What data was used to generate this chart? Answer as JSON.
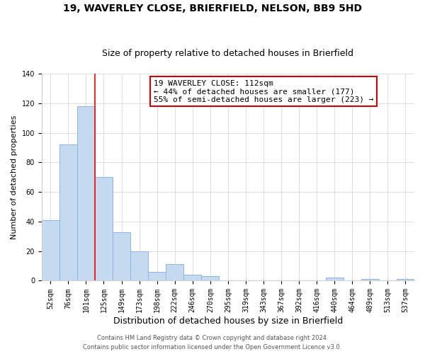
{
  "title": "19, WAVERLEY CLOSE, BRIERFIELD, NELSON, BB9 5HD",
  "subtitle": "Size of property relative to detached houses in Brierfield",
  "xlabel": "Distribution of detached houses by size in Brierfield",
  "ylabel": "Number of detached properties",
  "bar_labels": [
    "52sqm",
    "76sqm",
    "101sqm",
    "125sqm",
    "149sqm",
    "173sqm",
    "198sqm",
    "222sqm",
    "246sqm",
    "270sqm",
    "295sqm",
    "319sqm",
    "343sqm",
    "367sqm",
    "392sqm",
    "416sqm",
    "440sqm",
    "464sqm",
    "489sqm",
    "513sqm",
    "537sqm"
  ],
  "bar_values": [
    41,
    92,
    118,
    70,
    33,
    20,
    6,
    11,
    4,
    3,
    0,
    0,
    0,
    0,
    0,
    0,
    2,
    0,
    1,
    0,
    1
  ],
  "bar_color": "#c5d9f1",
  "bar_edge_color": "#8db4e2",
  "red_line_x": 2.5,
  "annotation_line1": "19 WAVERLEY CLOSE: 112sqm",
  "annotation_line2": "← 44% of detached houses are smaller (177)",
  "annotation_line3": "55% of semi-detached houses are larger (223) →",
  "annotation_box_color": "#ffffff",
  "annotation_box_edge": "#cc0000",
  "ylim": [
    0,
    140
  ],
  "yticks": [
    0,
    20,
    40,
    60,
    80,
    100,
    120,
    140
  ],
  "footer1": "Contains HM Land Registry data © Crown copyright and database right 2024.",
  "footer2": "Contains public sector information licensed under the Open Government Licence v3.0.",
  "title_fontsize": 10,
  "subtitle_fontsize": 9,
  "xlabel_fontsize": 9,
  "ylabel_fontsize": 8,
  "tick_fontsize": 7,
  "annot_fontsize": 8,
  "footer_fontsize": 6
}
